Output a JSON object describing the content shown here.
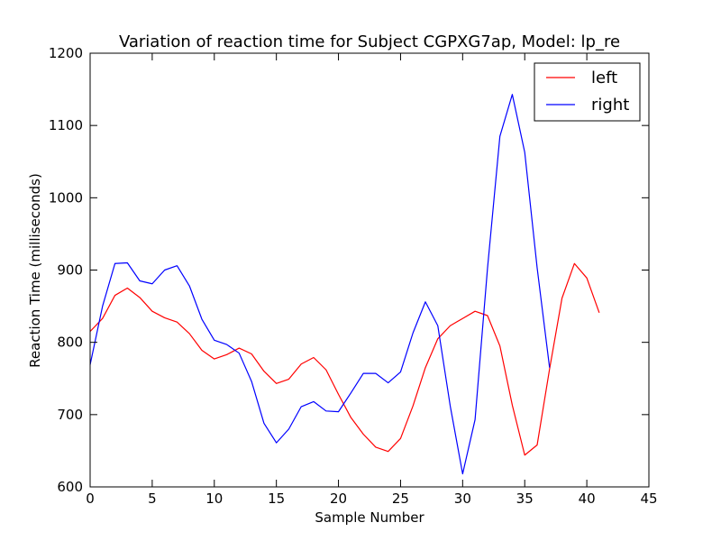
{
  "chart_data": {
    "type": "line",
    "title": "Variation of reaction time for Subject CGPXG7ap, Model: lp_re",
    "xlabel": "Sample Number",
    "ylabel": "Reaction Time (milliseconds)",
    "xlim": [
      0,
      45
    ],
    "ylim": [
      600,
      1200
    ],
    "xticks": [
      0,
      5,
      10,
      15,
      20,
      25,
      30,
      35,
      40,
      45
    ],
    "yticks": [
      600,
      700,
      800,
      900,
      1000,
      1100,
      1200
    ],
    "grid": false,
    "legend_position": "top-right",
    "series": [
      {
        "name": "left",
        "color": "#ff0000",
        "x": [
          0,
          1,
          2,
          3,
          4,
          5,
          6,
          7,
          8,
          9,
          10,
          11,
          12,
          13,
          14,
          15,
          16,
          17,
          18,
          19,
          20,
          21,
          22,
          23,
          24,
          25,
          26,
          27,
          28,
          29,
          30,
          31,
          32,
          33,
          34,
          35,
          36,
          37,
          38,
          39,
          40,
          41
        ],
        "y": [
          815,
          833,
          865,
          875,
          862,
          843,
          834,
          828,
          812,
          789,
          777,
          783,
          792,
          784,
          760,
          743,
          749,
          770,
          779,
          762,
          728,
          696,
          673,
          655,
          649,
          667,
          712,
          765,
          805,
          823,
          833,
          843,
          837,
          795,
          713,
          644,
          658,
          763,
          861,
          909,
          889,
          841
        ]
      },
      {
        "name": "right",
        "color": "#0000ff",
        "x": [
          0,
          1,
          2,
          3,
          4,
          5,
          6,
          7,
          8,
          9,
          10,
          11,
          12,
          13,
          14,
          15,
          16,
          17,
          18,
          19,
          20,
          21,
          22,
          23,
          24,
          25,
          26,
          27,
          28,
          29,
          30,
          31,
          32,
          33,
          34,
          35,
          36,
          37
        ],
        "y": [
          769,
          850,
          909,
          910,
          885,
          881,
          900,
          906,
          878,
          832,
          803,
          797,
          785,
          746,
          688,
          661,
          680,
          711,
          718,
          705,
          704,
          730,
          757,
          757,
          744,
          759,
          813,
          856,
          823,
          712,
          618,
          693,
          902,
          1085,
          1143,
          1063,
          903,
          765
        ]
      }
    ]
  }
}
